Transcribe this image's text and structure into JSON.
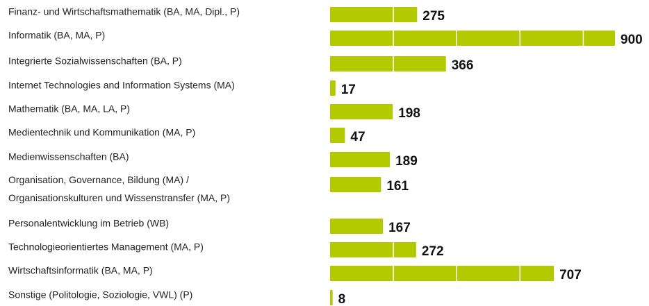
{
  "chart_data": {
    "type": "bar",
    "orientation": "horizontal",
    "categories": [
      "Finanz- und Wirtschaftsmathematik (BA, MA, Dipl., P)",
      "Informatik (BA, MA, P)",
      "Integrierte Sozialwissenschaften (BA, P)",
      "Internet Technologies and Information Systems (MA)",
      "Mathematik  (BA, MA, LA, P)",
      "Medientechnik und Kommunikation (MA, P)",
      "Medienwissenschaften (BA)",
      "Organisation, Governance, Bildung (MA) /\nOrganisationskulturen und Wissenstransfer (MA, P)",
      "Personalentwicklung im Betrieb (WB)",
      "Technologieorientiertes Management (MA, P)",
      "Wirtschaftsinformatik (BA, MA, P)",
      "Sonstige (Politologie, Soziologie, VWL)  (P)"
    ],
    "values": [
      275,
      900,
      366,
      17,
      198,
      47,
      189,
      161,
      167,
      272,
      707,
      8
    ],
    "color": "#b3c900",
    "xlim": [
      0,
      900
    ],
    "xticks": [
      200,
      400,
      600,
      800
    ],
    "grid": true
  }
}
